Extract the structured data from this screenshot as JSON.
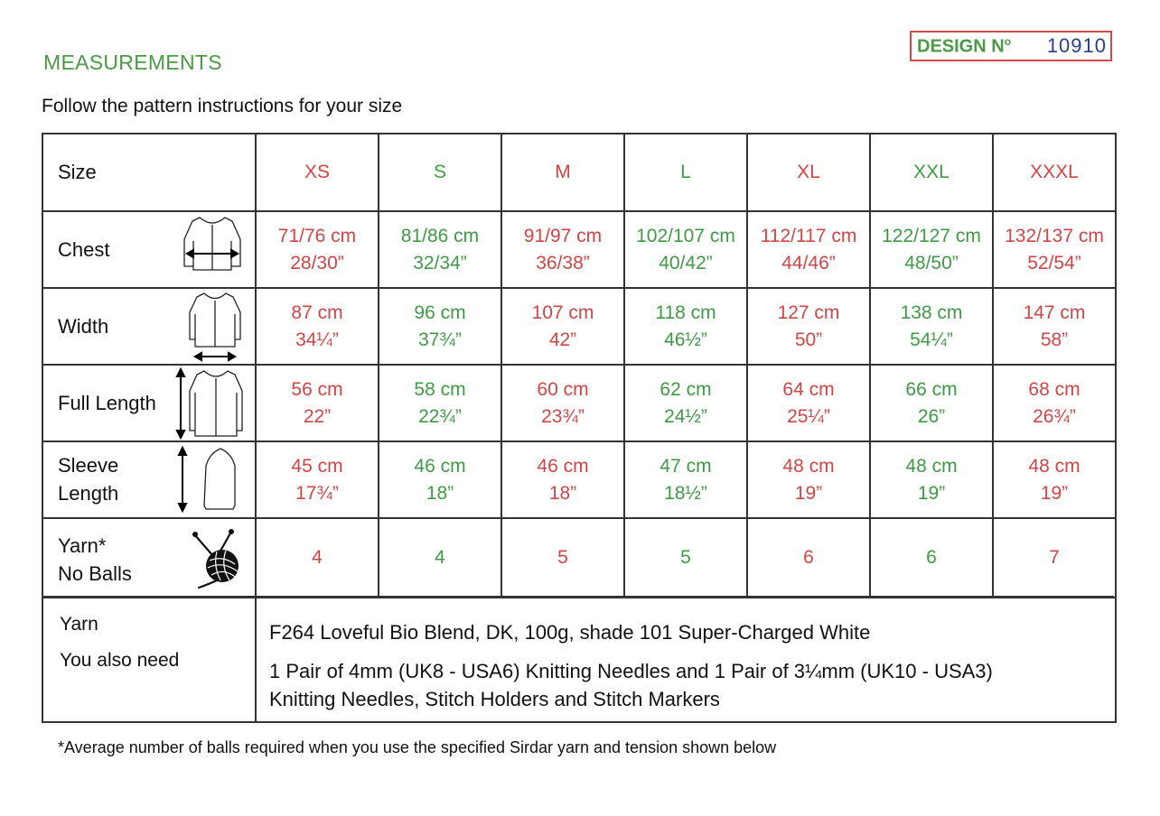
{
  "header": {
    "section_title": "MEASUREMENTS",
    "design_label": "DESIGN N",
    "design_sup": "o",
    "design_number": "10910",
    "intro": "Follow the pattern instructions for your size"
  },
  "colors": {
    "green": "#3f9a45",
    "red": "#d04545",
    "navy": "#2b3f8f"
  },
  "table": {
    "size_label": "Size",
    "sizes": [
      "XS",
      "S",
      "M",
      "L",
      "XL",
      "XXL",
      "XXXL"
    ],
    "rows": [
      {
        "label": "Chest",
        "icon": "chest-width-diagram-icon",
        "cells": [
          [
            "71/76 cm",
            "28/30”"
          ],
          [
            "81/86 cm",
            "32/34”"
          ],
          [
            "91/97 cm",
            "36/38”"
          ],
          [
            "102/107 cm",
            "40/42”"
          ],
          [
            "112/117 cm",
            "44/46”"
          ],
          [
            "122/127 cm",
            "48/50”"
          ],
          [
            "132/137 cm",
            "52/54”"
          ]
        ]
      },
      {
        "label": "Width",
        "icon": "garment-width-diagram-icon",
        "cells": [
          [
            "87 cm",
            "34¼”"
          ],
          [
            "96 cm",
            "37¾”"
          ],
          [
            "107 cm",
            "42”"
          ],
          [
            "118 cm",
            "46½”"
          ],
          [
            "127 cm",
            "50”"
          ],
          [
            "138 cm",
            "54¼”"
          ],
          [
            "147 cm",
            "58”"
          ]
        ]
      },
      {
        "label": "Full Length",
        "icon": "full-length-diagram-icon",
        "cells": [
          [
            "56 cm",
            "22”"
          ],
          [
            "58 cm",
            "22¾”"
          ],
          [
            "60 cm",
            "23¾”"
          ],
          [
            "62 cm",
            "24½”"
          ],
          [
            "64 cm",
            "25¼”"
          ],
          [
            "66 cm",
            "26”"
          ],
          [
            "68 cm",
            "26¾”"
          ]
        ]
      },
      {
        "label_line1": "Sleeve",
        "label_line2": "Length",
        "icon": "sleeve-length-diagram-icon",
        "cells": [
          [
            "45 cm",
            "17¾”"
          ],
          [
            "46 cm",
            "18”"
          ],
          [
            "46 cm",
            "18”"
          ],
          [
            "47 cm",
            "18½”"
          ],
          [
            "48 cm",
            "19”"
          ],
          [
            "48 cm",
            "19”"
          ],
          [
            "48 cm",
            "19”"
          ]
        ]
      }
    ],
    "yarn_row": {
      "label_line1": "Yarn*",
      "label_line2": "No Balls",
      "icon": "yarn-ball-needles-icon",
      "values": [
        "4",
        "4",
        "5",
        "5",
        "6",
        "6",
        "7"
      ]
    },
    "materials": {
      "yarn_label": "Yarn",
      "need_label": "You also need",
      "yarn_text": "F264 Loveful Bio Blend, DK, 100g, shade 101 Super-Charged White",
      "need_line1": "1 Pair of 4mm (UK8 - USA6) Knitting Needles and 1 Pair of 3¼mm (UK10 - USA3)",
      "need_line2": "Knitting Needles, Stitch Holders and Stitch Markers"
    }
  },
  "footnote": "*Average number of balls required when you use the specified Sirdar yarn and tension shown below"
}
